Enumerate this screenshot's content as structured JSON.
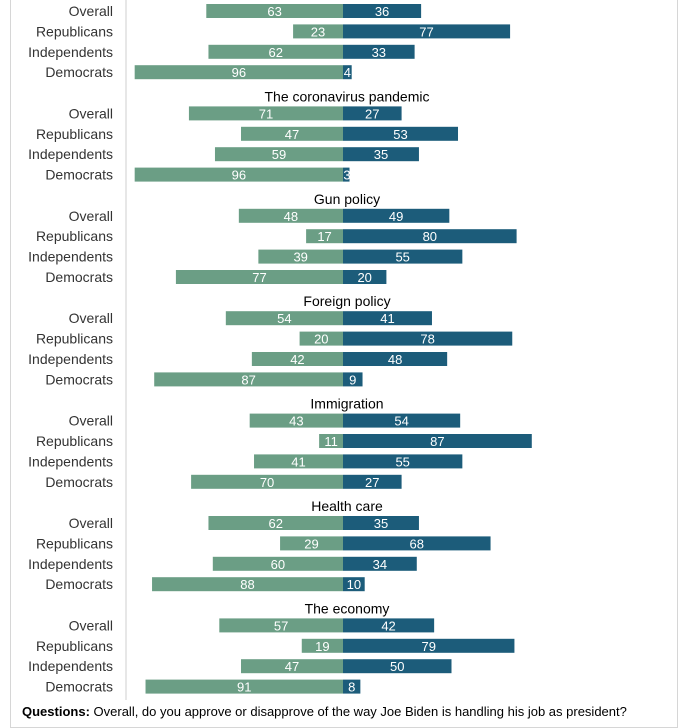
{
  "chart_data": {
    "type": "bar",
    "orientation": "horizontal-diverging",
    "colors": {
      "left": "#6b9e85",
      "right": "#1c5c7a"
    },
    "rows": [
      "Overall",
      "Republicans",
      "Independents",
      "Democrats"
    ],
    "panels": [
      {
        "title": "",
        "series": [
          {
            "name": "",
            "values": [
              63,
              23,
              62,
              96
            ]
          },
          {
            "name": "",
            "values": [
              36,
              77,
              33,
              4
            ]
          }
        ]
      },
      {
        "title": "The coronavirus pandemic",
        "series": [
          {
            "name": "",
            "values": [
              71,
              47,
              59,
              96
            ]
          },
          {
            "name": "",
            "values": [
              27,
              53,
              35,
              3
            ]
          }
        ]
      },
      {
        "title": "Gun policy",
        "series": [
          {
            "name": "",
            "values": [
              48,
              17,
              39,
              77
            ]
          },
          {
            "name": "",
            "values": [
              49,
              80,
              55,
              20
            ]
          }
        ]
      },
      {
        "title": "Foreign policy",
        "series": [
          {
            "name": "",
            "values": [
              54,
              20,
              42,
              87
            ]
          },
          {
            "name": "",
            "values": [
              41,
              78,
              48,
              9
            ]
          }
        ]
      },
      {
        "title": "Immigration",
        "series": [
          {
            "name": "",
            "values": [
              43,
              11,
              41,
              70
            ]
          },
          {
            "name": "",
            "values": [
              54,
              87,
              55,
              27
            ]
          }
        ]
      },
      {
        "title": "Health care",
        "series": [
          {
            "name": "",
            "values": [
              62,
              29,
              60,
              88
            ]
          },
          {
            "name": "",
            "values": [
              35,
              68,
              34,
              10
            ]
          }
        ]
      },
      {
        "title": "The economy",
        "series": [
          {
            "name": "",
            "values": [
              57,
              19,
              47,
              91
            ]
          },
          {
            "name": "",
            "values": [
              42,
              79,
              50,
              8
            ]
          }
        ]
      }
    ]
  },
  "footer": {
    "label": "Questions:",
    "text": "Overall, do you approve or disapprove of the way Joe Biden is handling his job as president?"
  }
}
